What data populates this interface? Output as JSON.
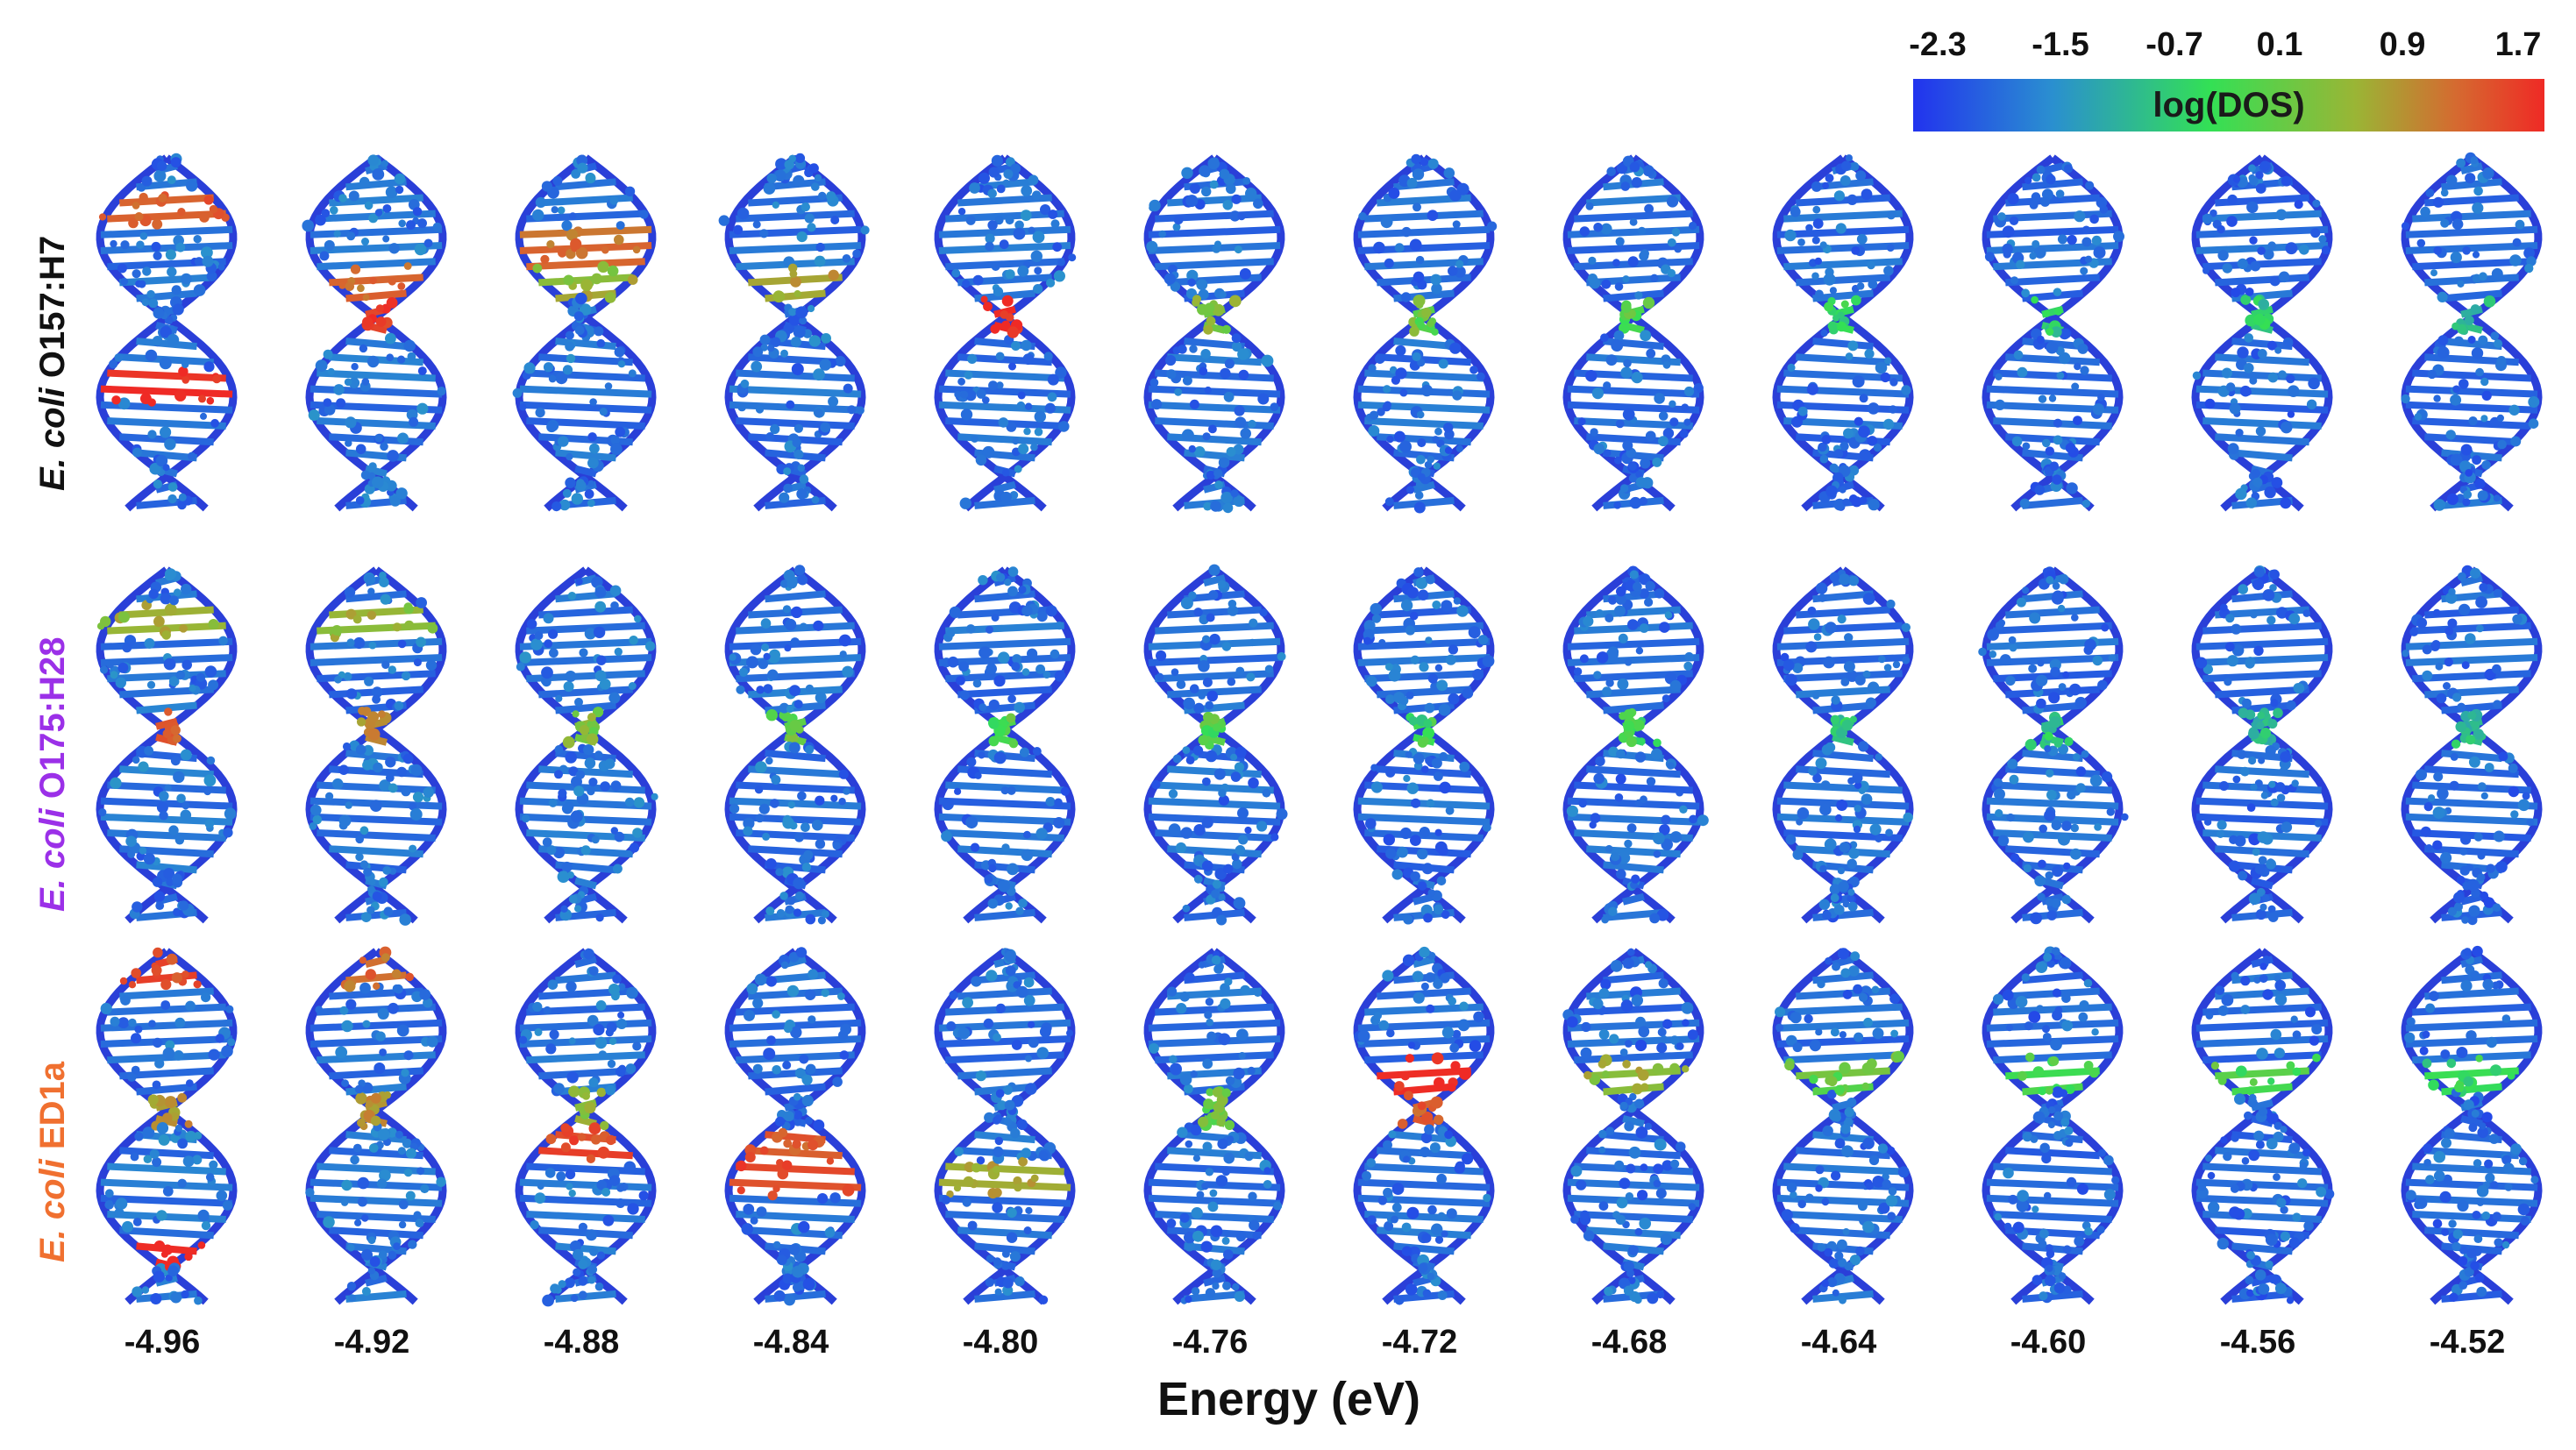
{
  "colorbar": {
    "title": "log(DOS)",
    "ticks": [
      "-2.3",
      "-1.5",
      "-0.7",
      "0.1",
      "0.9",
      "1.7"
    ],
    "colors": {
      "low": "#2233ee",
      "mid": "#33e055",
      "high": "#ef2a25"
    }
  },
  "rows": [
    {
      "species": "E. coli",
      "strain": "O157:H7",
      "color": "#111111"
    },
    {
      "species": "E. coli",
      "strain": "O175:H28",
      "color": "#9b30e8"
    },
    {
      "species": "E. coli",
      "strain": "ED1a",
      "color": "#f07030"
    }
  ],
  "energies": [
    "-4.96",
    "-4.92",
    "-4.88",
    "-4.84",
    "-4.80",
    "-4.76",
    "-4.72",
    "-4.68",
    "-4.64",
    "-4.60",
    "-4.56",
    "-4.52"
  ],
  "x_title": "Energy (eV)",
  "hotspots": [
    [
      [
        {
          "seg": 1,
          "level": 0.85
        },
        {
          "seg": 6,
          "level": 1.0
        }
      ],
      [
        {
          "seg": 3,
          "level": 0.8
        },
        {
          "seg": 4,
          "level": 0.95
        }
      ],
      [
        {
          "seg": 2,
          "level": 0.8
        },
        {
          "seg": 3,
          "level": 0.6
        }
      ],
      [
        {
          "seg": 3,
          "level": 0.65
        }
      ],
      [
        {
          "seg": 4,
          "level": 1.0
        }
      ],
      [
        {
          "seg": 4,
          "level": 0.55
        }
      ],
      [
        {
          "seg": 4,
          "level": 0.5
        }
      ],
      [
        {
          "seg": 4,
          "level": 0.45
        }
      ],
      [
        {
          "seg": 4,
          "level": 0.4
        }
      ],
      [
        {
          "seg": 4,
          "level": 0.35
        }
      ],
      [
        {
          "seg": 4,
          "level": 0.35
        }
      ],
      [
        {
          "seg": 4,
          "level": 0.3
        }
      ]
    ],
    [
      [
        {
          "seg": 4,
          "level": 0.85
        },
        {
          "seg": 1,
          "level": 0.6
        }
      ],
      [
        {
          "seg": 4,
          "level": 0.7
        },
        {
          "seg": 1,
          "level": 0.6
        }
      ],
      [
        {
          "seg": 4,
          "level": 0.55
        }
      ],
      [
        {
          "seg": 4,
          "level": 0.5
        }
      ],
      [
        {
          "seg": 4,
          "level": 0.45
        }
      ],
      [
        {
          "seg": 4,
          "level": 0.45
        }
      ],
      [
        {
          "seg": 4,
          "level": 0.4
        }
      ],
      [
        {
          "seg": 4,
          "level": 0.4
        }
      ],
      [
        {
          "seg": 4,
          "level": 0.35
        }
      ],
      [
        {
          "seg": 4,
          "level": 0.35
        }
      ],
      [
        {
          "seg": 4,
          "level": 0.3
        }
      ],
      [
        {
          "seg": 4,
          "level": 0.3
        }
      ]
    ],
    [
      [
        {
          "seg": 0,
          "level": 0.9
        },
        {
          "seg": 8,
          "level": 1.0
        },
        {
          "seg": 4,
          "level": 0.7
        }
      ],
      [
        {
          "seg": 0,
          "level": 0.8
        },
        {
          "seg": 4,
          "level": 0.7
        }
      ],
      [
        {
          "seg": 5,
          "level": 0.9
        },
        {
          "seg": 4,
          "level": 0.6
        }
      ],
      [
        {
          "seg": 5,
          "level": 0.85
        },
        {
          "seg": 6,
          "level": 0.9
        }
      ],
      [
        {
          "seg": 6,
          "level": 0.65
        }
      ],
      [
        {
          "seg": 4,
          "level": 0.5
        }
      ],
      [
        {
          "seg": 3,
          "level": 1.0
        },
        {
          "seg": 4,
          "level": 0.85
        }
      ],
      [
        {
          "seg": 3,
          "level": 0.6
        }
      ],
      [
        {
          "seg": 3,
          "level": 0.5
        }
      ],
      [
        {
          "seg": 3,
          "level": 0.45
        }
      ],
      [
        {
          "seg": 3,
          "level": 0.45
        }
      ],
      [
        {
          "seg": 3,
          "level": 0.4
        }
      ]
    ]
  ]
}
